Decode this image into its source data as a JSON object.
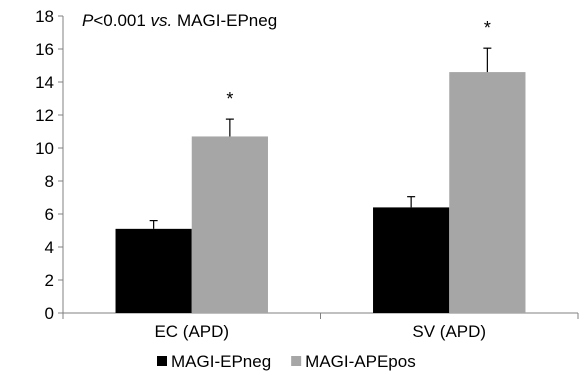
{
  "chart_data": {
    "type": "bar",
    "categories": [
      "EC (APD)",
      "SV (APD)"
    ],
    "series": [
      {
        "name": "MAGI-EPneg",
        "color": "#000000",
        "values": [
          5.1,
          6.4
        ],
        "errors": [
          0.5,
          0.65
        ]
      },
      {
        "name": "MAGI-APEpos",
        "color": "#a6a6a6",
        "values": [
          10.7,
          14.6
        ],
        "errors": [
          1.05,
          1.45
        ]
      }
    ],
    "significance": [
      "*",
      "*"
    ],
    "annotation": {
      "p_italic": "P",
      "p_rest": "<0.001 ",
      "vs_italic": "vs.",
      "ref": " MAGI-EPneg"
    },
    "ylim": [
      0,
      18
    ],
    "yticks": [
      0,
      2,
      4,
      6,
      8,
      10,
      12,
      14,
      16,
      18
    ],
    "xlabel": "",
    "ylabel": "",
    "grid": false,
    "legend_position": "bottom"
  }
}
